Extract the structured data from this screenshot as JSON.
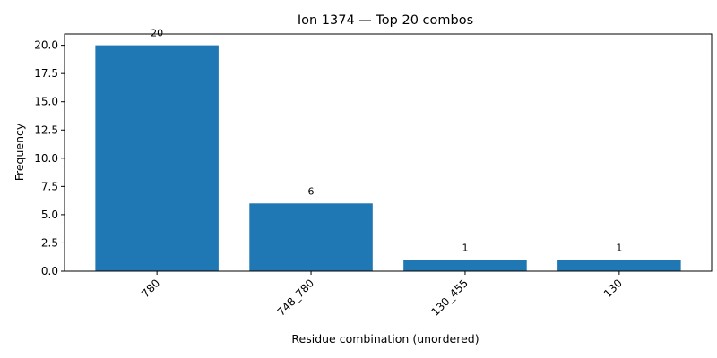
{
  "chart_data": {
    "type": "bar",
    "title": "Ion 1374 — Top 20 combos",
    "xlabel": "Residue combination (unordered)",
    "ylabel": "Frequency",
    "categories": [
      "780",
      "748_780",
      "130_455",
      "130"
    ],
    "values": [
      20,
      6,
      1,
      1
    ],
    "data_labels": [
      "20",
      "6",
      "1",
      "1"
    ],
    "ylim": [
      0,
      21
    ],
    "yticks": [
      0,
      2.5,
      5,
      7.5,
      10,
      12.5,
      15,
      17.5,
      20
    ],
    "ytick_labels": [
      "0.0",
      "2.5",
      "5.0",
      "7.5",
      "10.0",
      "12.5",
      "15.0",
      "17.5",
      "20.0"
    ],
    "x_tick_rotation_deg": 45,
    "grid": false,
    "bar_color": "#1f77b4"
  }
}
